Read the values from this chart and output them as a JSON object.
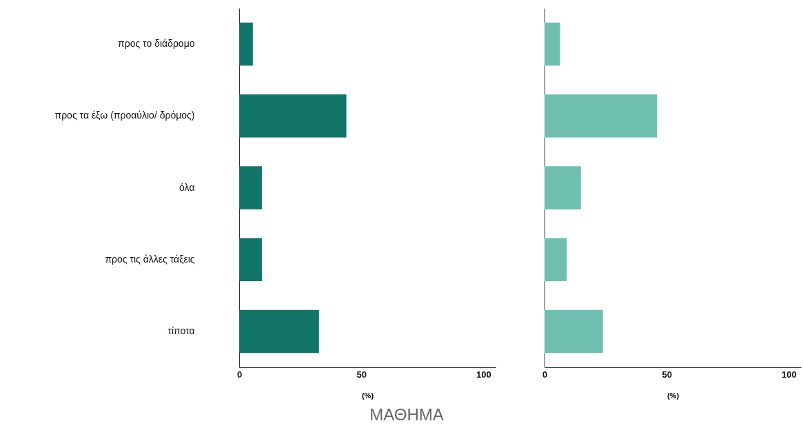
{
  "chart_data": [
    {
      "type": "bar",
      "orientation": "horizontal",
      "categories": [
        "προς το διάδρομο",
        "προς τα έξω (προαύλιο/ δρόμος)",
        "όλα",
        "προς τις άλλες τάξεις",
        "τίποτα"
      ],
      "values": [
        5.6,
        43.9,
        9.3,
        9.3,
        32.7
      ],
      "color": "#137567",
      "xlim": [
        0,
        105
      ],
      "xticks": [
        0,
        50,
        100
      ],
      "xlabel": "(%)",
      "annotations": [
        "ΜΑΘΗΜΑ"
      ]
    },
    {
      "type": "bar",
      "orientation": "horizontal",
      "categories": [
        null,
        null,
        null,
        null,
        null
      ],
      "values": [
        6.4,
        46.1,
        14.9,
        9.1,
        23.9
      ],
      "color": "#6fbfb0",
      "xlim": [
        0,
        105
      ],
      "xticks": [
        0,
        50,
        100
      ],
      "xlabel": "(%)",
      "tick_labels": "x"
    }
  ]
}
